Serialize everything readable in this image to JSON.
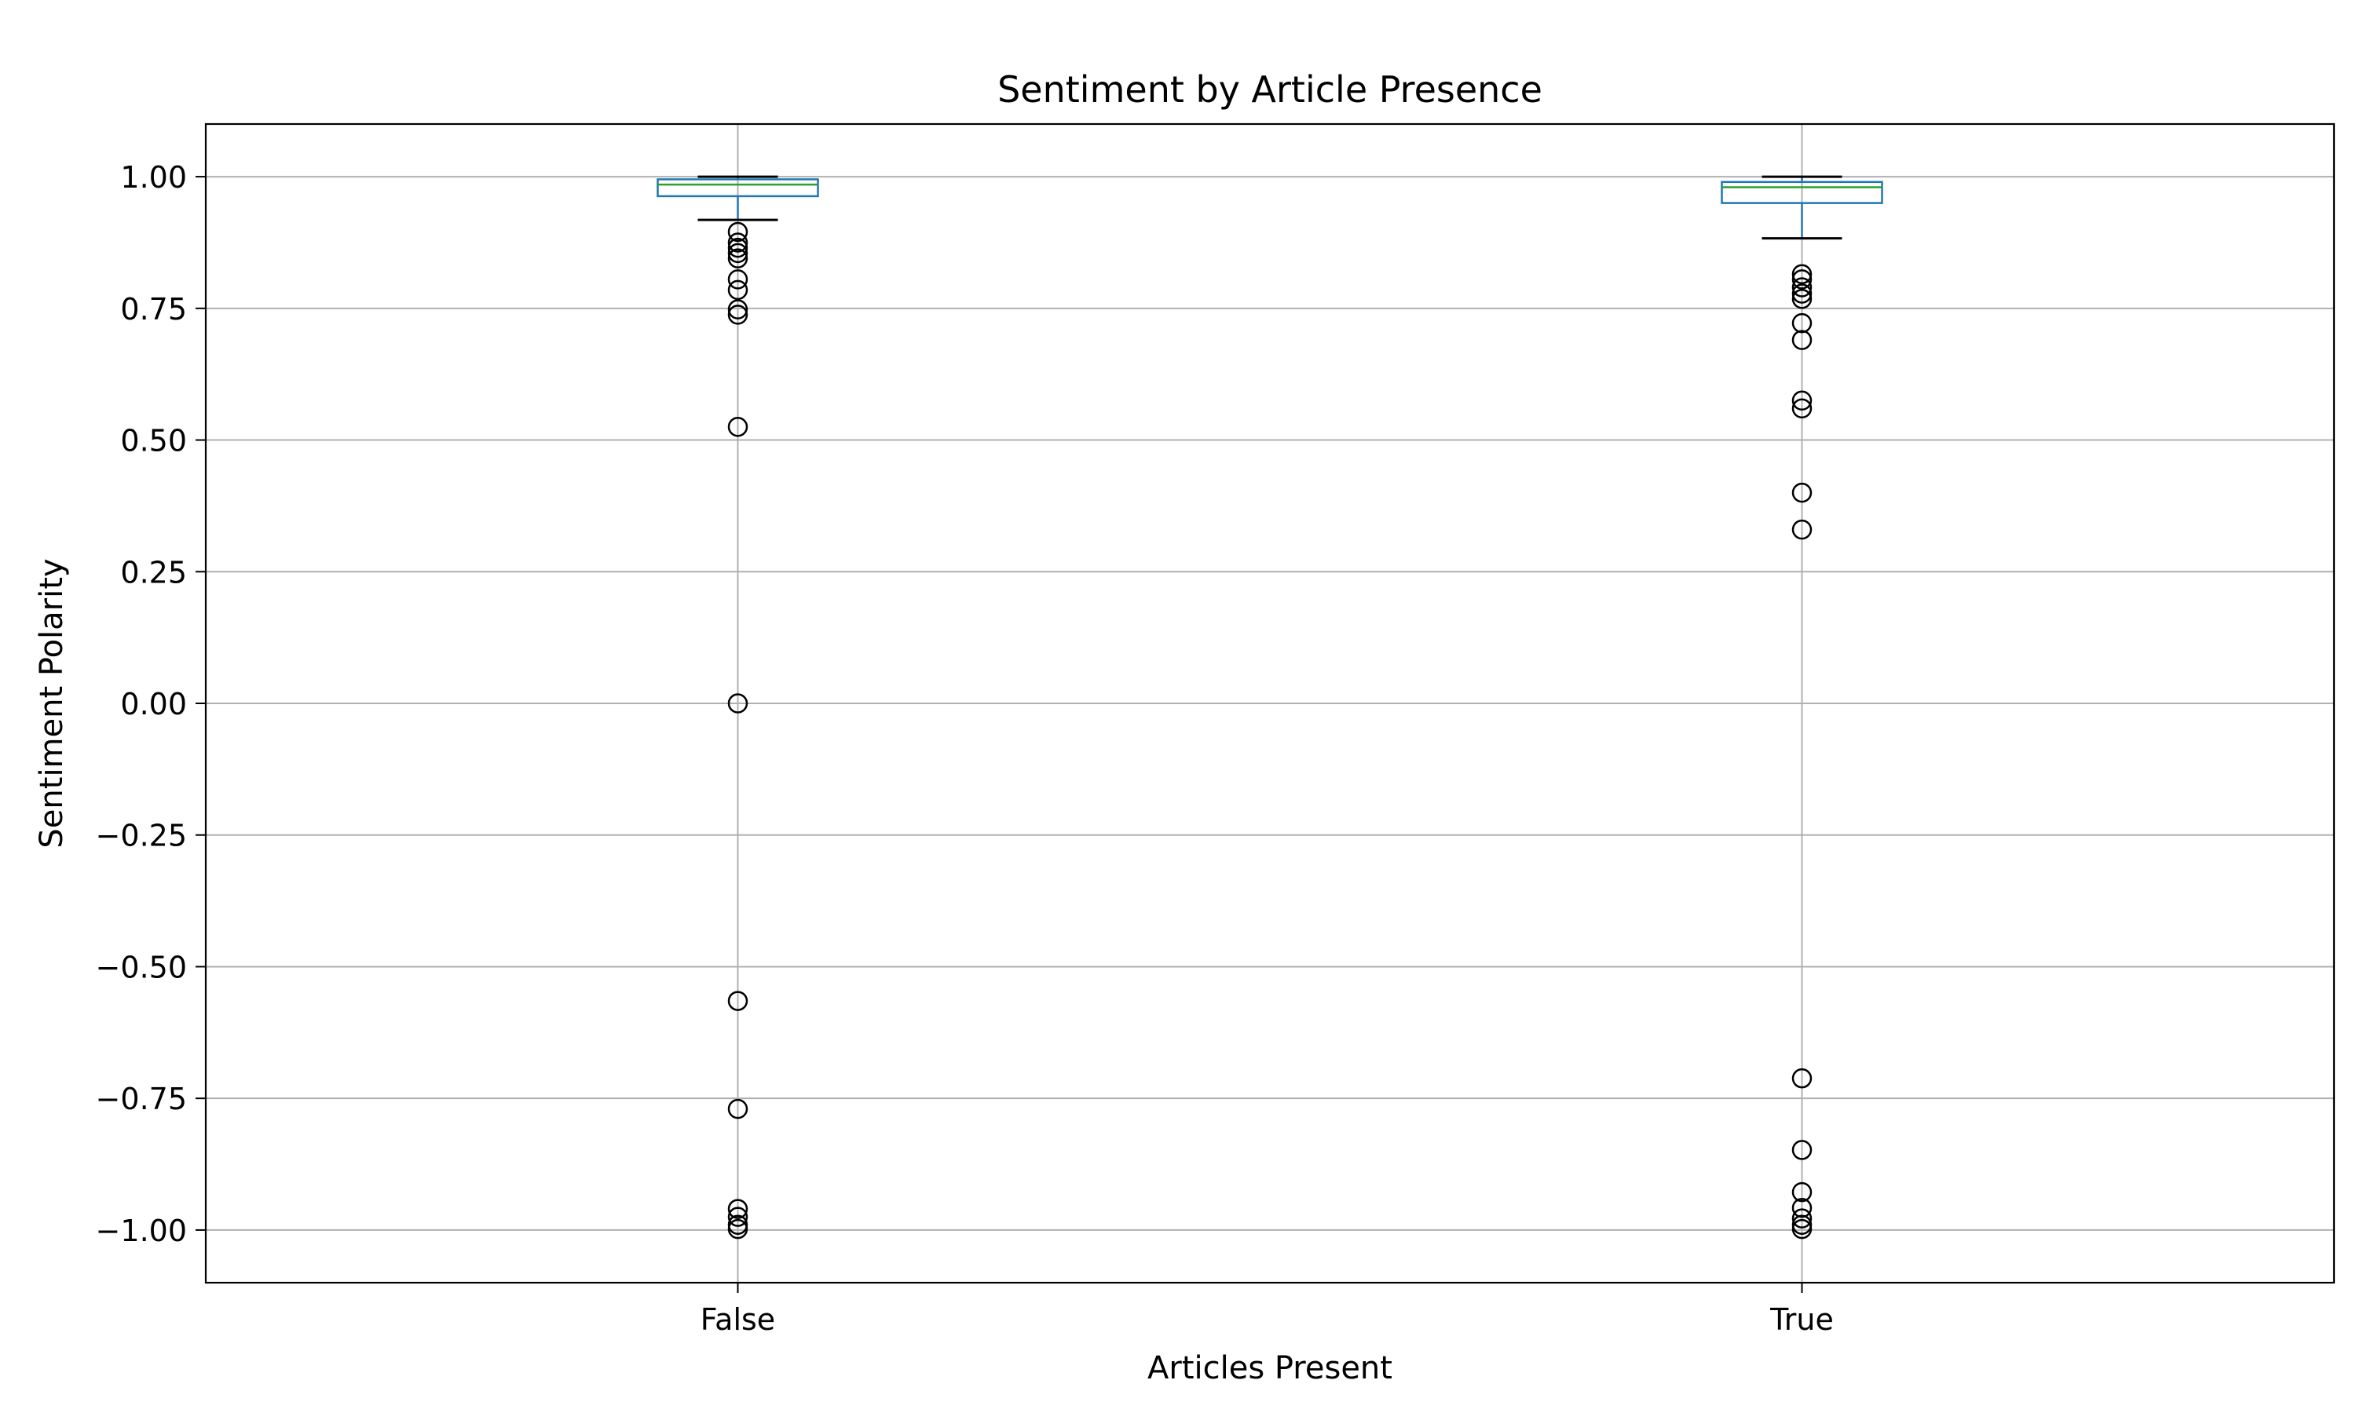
{
  "chart_data": {
    "type": "box",
    "title": "Sentiment by Article Presence",
    "xlabel": "Articles Present",
    "ylabel": "Sentiment Polarity",
    "ylim": [
      -1.1,
      1.1
    ],
    "yticks": [
      -1.0,
      -0.75,
      -0.5,
      -0.25,
      0.0,
      0.25,
      0.5,
      0.75,
      1.0
    ],
    "ytick_labels": [
      "−1.00",
      "−0.75",
      "−0.50",
      "−0.25",
      "0.00",
      "0.25",
      "0.50",
      "0.75",
      "1.00"
    ],
    "categories": [
      "False",
      "True"
    ],
    "grid": true,
    "boxes": [
      {
        "category": "False",
        "whisker_low": 0.918,
        "q1": 0.963,
        "median": 0.985,
        "q3": 0.995,
        "whisker_high": 1.0,
        "outliers": [
          0.895,
          0.875,
          0.865,
          0.855,
          0.845,
          0.805,
          0.785,
          0.748,
          0.738,
          0.525,
          0.0,
          -0.565,
          -0.77,
          -0.96,
          -0.975,
          -0.99,
          -0.998
        ]
      },
      {
        "category": "True",
        "whisker_low": 0.883,
        "q1": 0.95,
        "median": 0.98,
        "q3": 0.99,
        "whisker_high": 1.0,
        "outliers": [
          0.815,
          0.805,
          0.79,
          0.778,
          0.768,
          0.722,
          0.69,
          0.575,
          0.56,
          0.4,
          0.33,
          -0.712,
          -0.848,
          -0.928,
          -0.958,
          -0.978,
          -0.99,
          -0.998
        ]
      }
    ],
    "colors": {
      "box": "#1f77b4",
      "median": "#2ca02c",
      "whisker": "#1f77b4",
      "cap": "#000000",
      "outlier": "#000000",
      "grid": "#b0b0b0"
    }
  }
}
